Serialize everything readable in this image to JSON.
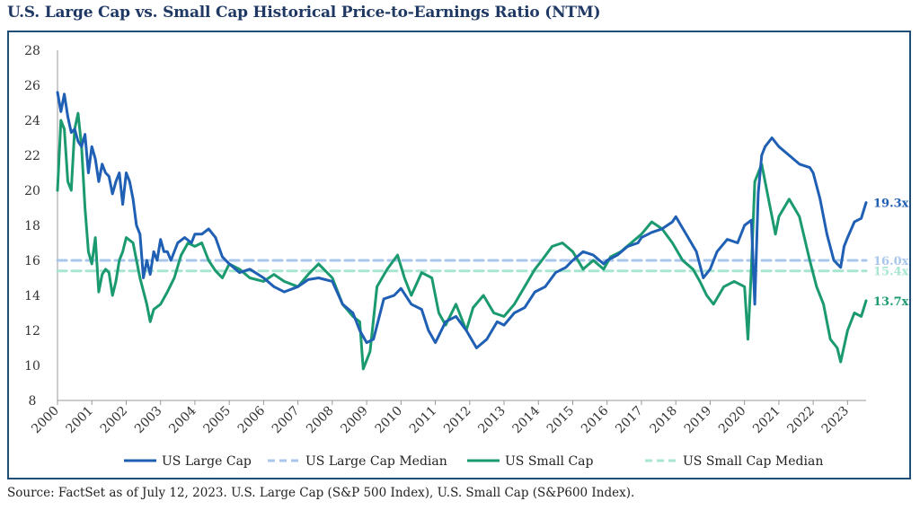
{
  "title": "U.S. Large Cap vs. Small Cap Historical Price-to-Earnings Ratio (NTM)",
  "source": "Source: FactSet as of July 12, 2023. U.S. Large Cap (S&P 500 Index), U.S. Small Cap (S&P600 Index).",
  "chart_data": {
    "type": "line",
    "title": "U.S. Large Cap vs. Small Cap Historical Price-to-Earnings Ratio (NTM)",
    "xlabel": "",
    "ylabel": "",
    "xlim": [
      2000,
      2023.54
    ],
    "ylim": [
      8,
      28
    ],
    "y_ticks": [
      8,
      10,
      12,
      14,
      16,
      18,
      20,
      22,
      24,
      26,
      28
    ],
    "y_tick_labels": [
      "8",
      "10",
      "12",
      "14",
      "16",
      "18",
      "20",
      "22",
      "24",
      "26",
      "28"
    ],
    "x_tick_labels": [
      "2000",
      "2001",
      "2002",
      "2003",
      "2004",
      "2005",
      "2006",
      "2007",
      "2008",
      "2009",
      "2010",
      "2011",
      "2012",
      "2013",
      "2014",
      "2015",
      "2016",
      "2017",
      "2018",
      "2019",
      "2020",
      "2021",
      "2022",
      "2023"
    ],
    "grid": false,
    "legend_position": "bottom",
    "series": [
      {
        "name": "US Large Cap",
        "color": "#1f5fb4",
        "style": "solid",
        "end_label": "19.3x",
        "x": [
          2000.0,
          2000.1,
          2000.2,
          2000.3,
          2000.4,
          2000.5,
          2000.6,
          2000.7,
          2000.8,
          2000.9,
          2001.0,
          2001.1,
          2001.2,
          2001.3,
          2001.4,
          2001.5,
          2001.6,
          2001.7,
          2001.8,
          2001.9,
          2002.0,
          2002.1,
          2002.2,
          2002.3,
          2002.4,
          2002.5,
          2002.6,
          2002.7,
          2002.8,
          2002.9,
          2003.0,
          2003.1,
          2003.2,
          2003.3,
          2003.5,
          2003.7,
          2003.9,
          2004.0,
          2004.2,
          2004.4,
          2004.6,
          2004.8,
          2005.0,
          2005.3,
          2005.6,
          2006.0,
          2006.3,
          2006.6,
          2007.0,
          2007.3,
          2007.6,
          2008.0,
          2008.3,
          2008.6,
          2008.8,
          2009.0,
          2009.2,
          2009.5,
          2009.8,
          2010.0,
          2010.3,
          2010.6,
          2010.8,
          2011.0,
          2011.3,
          2011.6,
          2011.9,
          2012.2,
          2012.5,
          2012.8,
          2013.0,
          2013.3,
          2013.6,
          2013.9,
          2014.2,
          2014.5,
          2014.8,
          2015.0,
          2015.3,
          2015.6,
          2015.9,
          2016.0,
          2016.3,
          2016.6,
          2016.9,
          2017.0,
          2017.3,
          2017.6,
          2017.9,
          2018.0,
          2018.3,
          2018.6,
          2018.8,
          2019.0,
          2019.2,
          2019.5,
          2019.8,
          2020.0,
          2020.2,
          2020.3,
          2020.4,
          2020.5,
          2020.6,
          2020.8,
          2021.0,
          2021.3,
          2021.6,
          2021.9,
          2022.0,
          2022.2,
          2022.4,
          2022.6,
          2022.8,
          2022.9,
          2023.0,
          2023.2,
          2023.4,
          2023.54
        ],
        "y": [
          25.6,
          24.5,
          25.5,
          24.2,
          23.3,
          23.5,
          22.8,
          22.5,
          23.2,
          21.0,
          22.5,
          21.8,
          20.5,
          21.5,
          21.0,
          20.8,
          19.8,
          20.5,
          21.0,
          19.2,
          21.0,
          20.5,
          19.5,
          18.0,
          17.5,
          15.0,
          16.0,
          15.2,
          16.5,
          16.0,
          17.2,
          16.5,
          16.5,
          16.0,
          17.0,
          17.3,
          17.0,
          17.5,
          17.5,
          17.8,
          17.3,
          16.2,
          15.8,
          15.3,
          15.5,
          15.0,
          14.5,
          14.2,
          14.5,
          14.9,
          15.0,
          14.8,
          13.5,
          13.0,
          12.0,
          11.3,
          11.5,
          13.8,
          14.0,
          14.4,
          13.5,
          13.2,
          12.0,
          11.3,
          12.5,
          12.8,
          12.0,
          11.0,
          11.5,
          12.5,
          12.3,
          13.0,
          13.3,
          14.2,
          14.5,
          15.3,
          15.6,
          16.0,
          16.5,
          16.3,
          15.8,
          16.0,
          16.3,
          16.8,
          17.0,
          17.3,
          17.6,
          17.8,
          18.2,
          18.5,
          17.5,
          16.5,
          15.0,
          15.5,
          16.5,
          17.2,
          17.0,
          18.0,
          18.3,
          13.5,
          19.8,
          22.0,
          22.5,
          23.0,
          22.5,
          22.0,
          21.5,
          21.3,
          21.0,
          19.5,
          17.5,
          16.0,
          15.6,
          16.8,
          17.3,
          18.2,
          18.4,
          19.3
        ]
      },
      {
        "name": "US Large Cap Median",
        "color": "#a9c6ec",
        "style": "dashed",
        "end_label": "16.0x",
        "x": [
          2000,
          2023.54
        ],
        "y": [
          16.0,
          16.0
        ]
      },
      {
        "name": "US Small Cap",
        "color": "#1b9a70",
        "style": "solid",
        "end_label": "13.7x",
        "x": [
          2000.0,
          2000.1,
          2000.2,
          2000.3,
          2000.4,
          2000.5,
          2000.6,
          2000.7,
          2000.8,
          2000.9,
          2001.0,
          2001.1,
          2001.2,
          2001.3,
          2001.4,
          2001.5,
          2001.6,
          2001.7,
          2001.8,
          2001.9,
          2002.0,
          2002.2,
          2002.4,
          2002.6,
          2002.7,
          2002.8,
          2003.0,
          2003.2,
          2003.4,
          2003.6,
          2003.8,
          2004.0,
          2004.2,
          2004.4,
          2004.6,
          2004.8,
          2005.0,
          2005.3,
          2005.6,
          2006.0,
          2006.3,
          2006.6,
          2007.0,
          2007.3,
          2007.6,
          2008.0,
          2008.3,
          2008.6,
          2008.8,
          2008.9,
          2009.1,
          2009.3,
          2009.6,
          2009.9,
          2010.1,
          2010.3,
          2010.6,
          2010.9,
          2011.1,
          2011.3,
          2011.6,
          2011.9,
          2012.1,
          2012.4,
          2012.7,
          2013.0,
          2013.3,
          2013.6,
          2013.9,
          2014.1,
          2014.4,
          2014.7,
          2015.0,
          2015.3,
          2015.6,
          2015.9,
          2016.1,
          2016.4,
          2016.7,
          2017.0,
          2017.3,
          2017.6,
          2017.9,
          2018.2,
          2018.5,
          2018.7,
          2018.9,
          2019.1,
          2019.4,
          2019.7,
          2020.0,
          2020.1,
          2020.2,
          2020.3,
          2020.5,
          2020.7,
          2020.9,
          2021.0,
          2021.3,
          2021.6,
          2021.9,
          2022.1,
          2022.3,
          2022.5,
          2022.7,
          2022.8,
          2023.0,
          2023.2,
          2023.4,
          2023.54
        ],
        "y": [
          20.0,
          24.0,
          23.5,
          20.5,
          20.0,
          23.5,
          24.4,
          22.5,
          19.0,
          16.5,
          15.8,
          17.3,
          14.2,
          15.2,
          15.5,
          15.3,
          14.0,
          14.8,
          16.0,
          16.5,
          17.3,
          17.0,
          15.0,
          13.5,
          12.5,
          13.2,
          13.5,
          14.2,
          15.0,
          16.3,
          17.0,
          16.8,
          17.0,
          16.0,
          15.4,
          15.0,
          15.8,
          15.5,
          15.0,
          14.8,
          15.2,
          14.8,
          14.5,
          15.2,
          15.8,
          15.0,
          13.5,
          12.8,
          12.5,
          9.8,
          10.8,
          14.5,
          15.5,
          16.3,
          15.0,
          14.0,
          15.3,
          15.0,
          13.0,
          12.3,
          13.5,
          12.0,
          13.3,
          14.0,
          13.0,
          12.8,
          13.5,
          14.5,
          15.5,
          16.0,
          16.8,
          17.0,
          16.5,
          15.5,
          16.0,
          15.5,
          16.2,
          16.5,
          17.0,
          17.5,
          18.2,
          17.8,
          17.0,
          16.0,
          15.5,
          14.8,
          14.0,
          13.5,
          14.5,
          14.8,
          14.5,
          11.5,
          15.5,
          20.5,
          21.5,
          19.5,
          17.5,
          18.5,
          19.5,
          18.5,
          16.0,
          14.5,
          13.5,
          11.5,
          11.0,
          10.2,
          12.0,
          13.0,
          12.8,
          13.7
        ]
      },
      {
        "name": "US Small Cap Median",
        "color": "#a8e6cf",
        "style": "dashed",
        "end_label": "15.4x",
        "x": [
          2000,
          2023.54
        ],
        "y": [
          15.4,
          15.4
        ]
      }
    ]
  }
}
